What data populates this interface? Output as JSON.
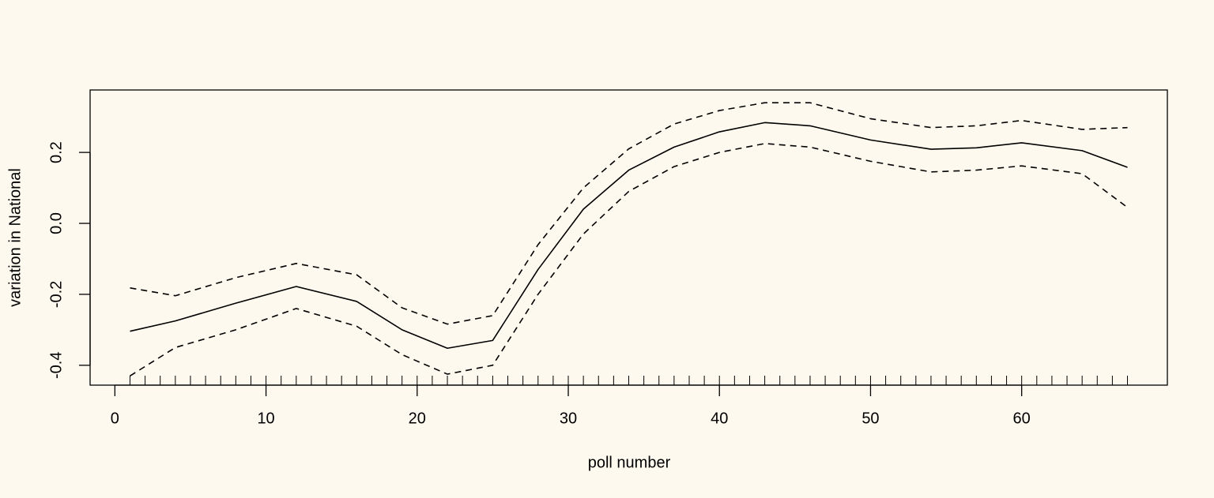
{
  "chart_data": {
    "type": "line",
    "xlabel": "poll number",
    "ylabel": "variation in National",
    "x": [
      1,
      4,
      8,
      12,
      16,
      19,
      22,
      25,
      28,
      31,
      34,
      37,
      40,
      43,
      46,
      50,
      54,
      57,
      60,
      64,
      67
    ],
    "series": [
      {
        "color": "#000000",
        "dashed": false,
        "values": [
          -0.304,
          -0.275,
          -0.225,
          -0.178,
          -0.22,
          -0.3,
          -0.352,
          -0.33,
          -0.13,
          0.04,
          0.15,
          0.215,
          0.258,
          0.284,
          0.275,
          0.235,
          0.209,
          0.213,
          0.227,
          0.205,
          0.158
        ]
      },
      {
        "color": "#000000",
        "dashed": true,
        "values": [
          -0.182,
          -0.204,
          -0.153,
          -0.113,
          -0.145,
          -0.238,
          -0.284,
          -0.26,
          -0.06,
          0.1,
          0.21,
          0.28,
          0.318,
          0.34,
          0.34,
          0.295,
          0.27,
          0.275,
          0.29,
          0.265,
          0.27
        ]
      },
      {
        "color": "#000000",
        "dashed": true,
        "values": [
          -0.43,
          -0.35,
          -0.3,
          -0.24,
          -0.29,
          -0.37,
          -0.425,
          -0.4,
          -0.2,
          -0.03,
          0.09,
          0.16,
          0.2,
          0.225,
          0.215,
          0.175,
          0.145,
          0.15,
          0.162,
          0.14,
          0.045
        ]
      }
    ],
    "rug": [
      1,
      2,
      3,
      4,
      5,
      6,
      7,
      8,
      9,
      10,
      11,
      12,
      13,
      14,
      15,
      16,
      17,
      18,
      19,
      20,
      21,
      22,
      23,
      24,
      25,
      26,
      27,
      28,
      29,
      30,
      31,
      32,
      33,
      34,
      35,
      36,
      37,
      38,
      39,
      40,
      41,
      42,
      43,
      44,
      45,
      46,
      47,
      48,
      49,
      50,
      51,
      52,
      53,
      54,
      55,
      56,
      57,
      58,
      59,
      60,
      61,
      62,
      63,
      64,
      65,
      66,
      67
    ],
    "xlim": [
      -1.64,
      69.64
    ],
    "ylim": [
      -0.456,
      0.376
    ],
    "xticks": [
      0,
      10,
      20,
      30,
      40,
      50,
      60
    ],
    "yticks": [
      {
        "value": -0.4,
        "label": "-0.4"
      },
      {
        "value": -0.2,
        "label": "-0.2"
      },
      {
        "value": 0,
        "label": "0.0"
      },
      {
        "value": 0.2,
        "label": "0.2"
      }
    ]
  }
}
